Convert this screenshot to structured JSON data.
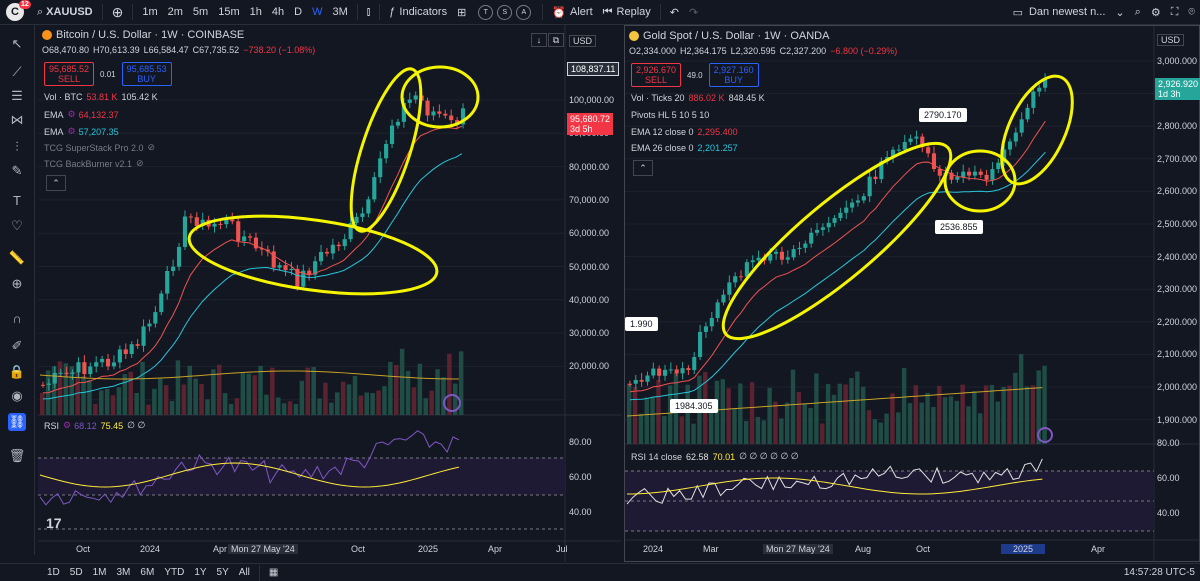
{
  "topbar": {
    "logo_letter": "C",
    "notification_count": "12",
    "symbol": "XAUUSD",
    "intervals": [
      "1m",
      "2m",
      "5m",
      "15m",
      "1h",
      "4h",
      "D",
      "W",
      "3M"
    ],
    "active_interval": "W",
    "indicators_label": "Indicators",
    "compare_circles": [
      "T",
      "S",
      "A"
    ],
    "alert_label": "Alert",
    "replay_label": "Replay",
    "layout_name": "Dan newest n..."
  },
  "bottombar": {
    "ranges": [
      "1D",
      "5D",
      "1M",
      "3M",
      "6M",
      "YTD",
      "1Y",
      "5Y",
      "All"
    ],
    "clock": "14:57:28 UTC-5"
  },
  "left_chart": {
    "title": "Bitcoin / U.S. Dollar · 1W · COINBASE",
    "ohlc": {
      "o": "O68,470.80",
      "h": "H70,613.39",
      "l": "L66,584.47",
      "c": "C67,735.52",
      "chg": "−738.20 (−1.08%)"
    },
    "sell_price": "95,685.52",
    "sell_label": "SELL",
    "spread": "0.01",
    "buy_price": "95,685.53",
    "buy_label": "BUY",
    "vol_label": "Vol · BTC",
    "vol_v1": "53.81 K",
    "vol_v2": "105.42 K",
    "ema1_label": "EMA",
    "ema1_value": "64,132.37",
    "ema2_label": "EMA",
    "ema2_value": "57,207.35",
    "ind3": "TCG SuperStack Pro 2.0",
    "ind4": "TCG BackBurner v2.1",
    "rsi_label": "RSI",
    "rsi_v1": "68.12",
    "rsi_v2": "75.45",
    "rsi_v3": "∅ ∅",
    "currency": "USD",
    "price_axis": [
      "100,000.00",
      "90,000.00",
      "80,000.00",
      "70,000.00",
      "60,000.00",
      "50,000.00",
      "40,000.00",
      "30,000.00",
      "20,000.00"
    ],
    "high_tag": "108,837.11",
    "last_tag": "95,680.72",
    "last_tag_time": "3d 5h",
    "rsi_axis": [
      "80.00",
      "60.00",
      "40.00"
    ],
    "time_axis": [
      "Oct",
      "2024",
      "Apr",
      "Mon 27 May '24",
      "Oct",
      "2025",
      "Apr",
      "Jul"
    ]
  },
  "right_chart": {
    "title": "Gold Spot / U.S. Dollar · 1W · OANDA",
    "ohlc": {
      "o": "O2,334.000",
      "h": "H2,364.175",
      "l": "L2,320.595",
      "c": "C2,327.200",
      "chg": "−6.800 (−0.29%)"
    },
    "sell_price": "2,926.670",
    "sell_label": "SELL",
    "spread": "49.0",
    "buy_price": "2,927.160",
    "buy_label": "BUY",
    "vol_label": "Vol · Ticks 20",
    "vol_v1": "886.02 K",
    "vol_v2": "848.45 K",
    "pivots": "Pivots HL 5 10 5 10",
    "ema12_label": "EMA 12 close 0",
    "ema12_value": "2,295.400",
    "ema26_label": "EMA 26 close 0",
    "ema26_value": "2,201.257",
    "rsi_label": "RSI 14 close",
    "rsi_v1": "62.58",
    "rsi_v2": "70.01",
    "rsi_v3": "∅ ∅ ∅ ∅ ∅ ∅",
    "currency": "USD",
    "price_axis": [
      "3,000.000",
      "2,900.000",
      "2,800.000",
      "2,700.000",
      "2,600.000",
      "2,500.000",
      "2,400.000",
      "2,300.000",
      "2,200.000",
      "2,100.000",
      "2,000.000",
      "1,900.000"
    ],
    "last_tag": "2,926.920",
    "last_tag_time": "1d 3h",
    "callout_high": "2790.170",
    "callout_mid": "2536.855",
    "callout_low": "1984.305",
    "callout_left": "1.990",
    "rsi_axis": [
      "80.00",
      "60.00",
      "40.00"
    ],
    "time_axis": [
      "2024",
      "Mar",
      "Mon 27 May '24",
      "Aug",
      "Oct",
      "2025",
      "Apr"
    ]
  },
  "colors": {
    "bg": "#131722",
    "up": "#26a69a",
    "down": "#ef5350",
    "annot": "#f5f500",
    "accent": "#2962ff"
  }
}
